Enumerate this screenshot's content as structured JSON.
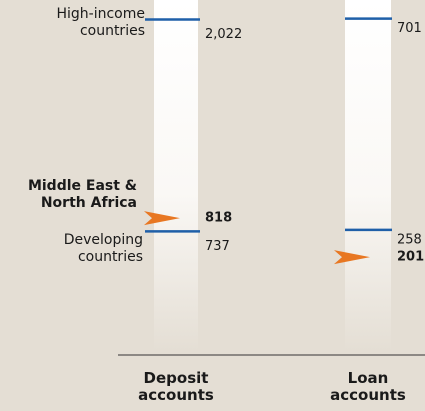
{
  "chart_data": {
    "type": "marker",
    "categories": [
      "Deposit accounts",
      "Loan accounts"
    ],
    "ylims": [
      [
        0,
        2140
      ],
      [
        0,
        740
      ]
    ],
    "series": [
      {
        "name": "High-income countries",
        "color": "#1f5fa8",
        "marker": "line",
        "values": [
          2022,
          701
        ],
        "value_labels": [
          "2,022",
          "701"
        ]
      },
      {
        "name": "Middle East & North Africa",
        "color": "#e87722",
        "marker": "arrow",
        "values": [
          818,
          201
        ],
        "value_labels": [
          "818",
          "201"
        ]
      },
      {
        "name": "Developing countries",
        "color": "#1f5fa8",
        "marker": "line",
        "values": [
          737,
          258
        ],
        "value_labels": [
          "737",
          "258"
        ]
      }
    ]
  }
}
